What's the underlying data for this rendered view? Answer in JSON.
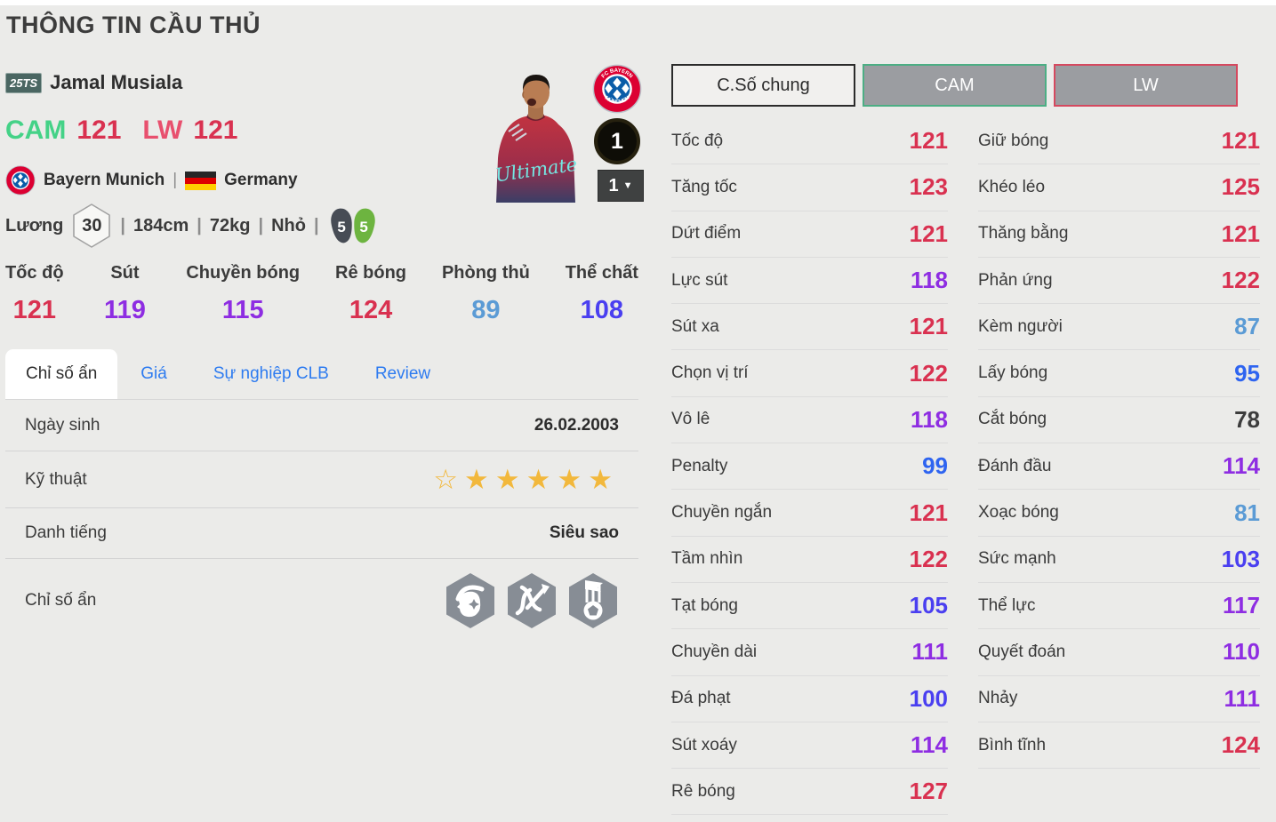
{
  "page_title": "THÔNG TIN CẦU THỦ",
  "player": {
    "season_badge": "25TS",
    "name": "Jamal Musiala",
    "pos1_label": "CAM",
    "pos1_rating": "121",
    "pos2_label": "LW",
    "pos2_rating": "121",
    "club": "Bayern Munich",
    "nation": "Germany",
    "separator": "|",
    "salary_label": "Lương",
    "salary": "30",
    "height": "184cm",
    "weight": "72kg",
    "body_type": "Nhỏ",
    "weak_foot": "5",
    "skill_foot": "5",
    "jersey_text": "Ultimate",
    "level": "1",
    "level_select": "1",
    "club_logo_top_text": "FC BAYERN",
    "club_logo_bottom_text": "MÜNCHEN"
  },
  "main_stats": [
    {
      "label": "Tốc độ",
      "value": "121"
    },
    {
      "label": "Sút",
      "value": "119"
    },
    {
      "label": "Chuyền bóng",
      "value": "115"
    },
    {
      "label": "Rê bóng",
      "value": "124"
    },
    {
      "label": "Phòng thủ",
      "value": "89"
    },
    {
      "label": "Thể chất",
      "value": "108"
    }
  ],
  "tabs": [
    {
      "label": "Chỉ số ẩn",
      "active": true
    },
    {
      "label": "Giá",
      "active": false
    },
    {
      "label": "Sự nghiệp CLB",
      "active": false
    },
    {
      "label": "Review",
      "active": false
    }
  ],
  "info": {
    "birth_label": "Ngày sinh",
    "birth_value": "26.02.2003",
    "skill_label": "Kỹ thuật",
    "stars_outline": 1,
    "stars_filled": 5,
    "fame_label": "Danh tiếng",
    "fame_value": "Siêu sao",
    "hidden_label": "Chỉ số ẩn",
    "hidden_icons": [
      "mohawk-head",
      "dribble-arrows",
      "trophy-ball"
    ]
  },
  "position_tabs": [
    {
      "label": "C.Số chung",
      "active": true
    },
    {
      "label": "CAM",
      "active": false
    },
    {
      "label": "LW",
      "active": false
    }
  ],
  "detail_stats": {
    "left": [
      {
        "label": "Tốc độ",
        "value": "121"
      },
      {
        "label": "Tăng tốc",
        "value": "123"
      },
      {
        "label": "Dứt điểm",
        "value": "121"
      },
      {
        "label": "Lực sút",
        "value": "118"
      },
      {
        "label": "Sút xa",
        "value": "121"
      },
      {
        "label": "Chọn vị trí",
        "value": "122"
      },
      {
        "label": "Vô lê",
        "value": "118"
      },
      {
        "label": "Penalty",
        "value": "99"
      },
      {
        "label": "Chuyền ngắn",
        "value": "121"
      },
      {
        "label": "Tầm nhìn",
        "value": "122"
      },
      {
        "label": "Tạt bóng",
        "value": "105"
      },
      {
        "label": "Chuyền dài",
        "value": "111"
      },
      {
        "label": "Đá phạt",
        "value": "100"
      },
      {
        "label": "Sút xoáy",
        "value": "114"
      },
      {
        "label": "Rê bóng",
        "value": "127"
      }
    ],
    "right": [
      {
        "label": "Giữ bóng",
        "value": "121"
      },
      {
        "label": "Khéo léo",
        "value": "125"
      },
      {
        "label": "Thăng bằng",
        "value": "121"
      },
      {
        "label": "Phản ứng",
        "value": "122"
      },
      {
        "label": "Kèm người",
        "value": "87"
      },
      {
        "label": "Lấy bóng",
        "value": "95"
      },
      {
        "label": "Cắt bóng",
        "value": "78"
      },
      {
        "label": "Đánh đầu",
        "value": "114"
      },
      {
        "label": "Xoạc bóng",
        "value": "81"
      },
      {
        "label": "Sức mạnh",
        "value": "103"
      },
      {
        "label": "Thể lực",
        "value": "117"
      },
      {
        "label": "Quyết đoán",
        "value": "110"
      },
      {
        "label": "Nhảy",
        "value": "111"
      },
      {
        "label": "Bình tĩnh",
        "value": "124"
      }
    ]
  },
  "colors": {
    "tier_120_plus": "#d93150",
    "tier_110s": "#8e2de2",
    "tier_100s": "#4a3ff0",
    "tier_90s": "#2e64f0",
    "tier_80s": "#5b9bd5",
    "tier_below_80": "#3d3d3d",
    "cam_green": "#44d287",
    "lw_pink": "#e8506e",
    "tab_link_blue": "#2d7bf0",
    "star_gold": "#f2b83c",
    "cam_tab_border": "#4cae84",
    "lw_tab_border": "#d5495f"
  }
}
